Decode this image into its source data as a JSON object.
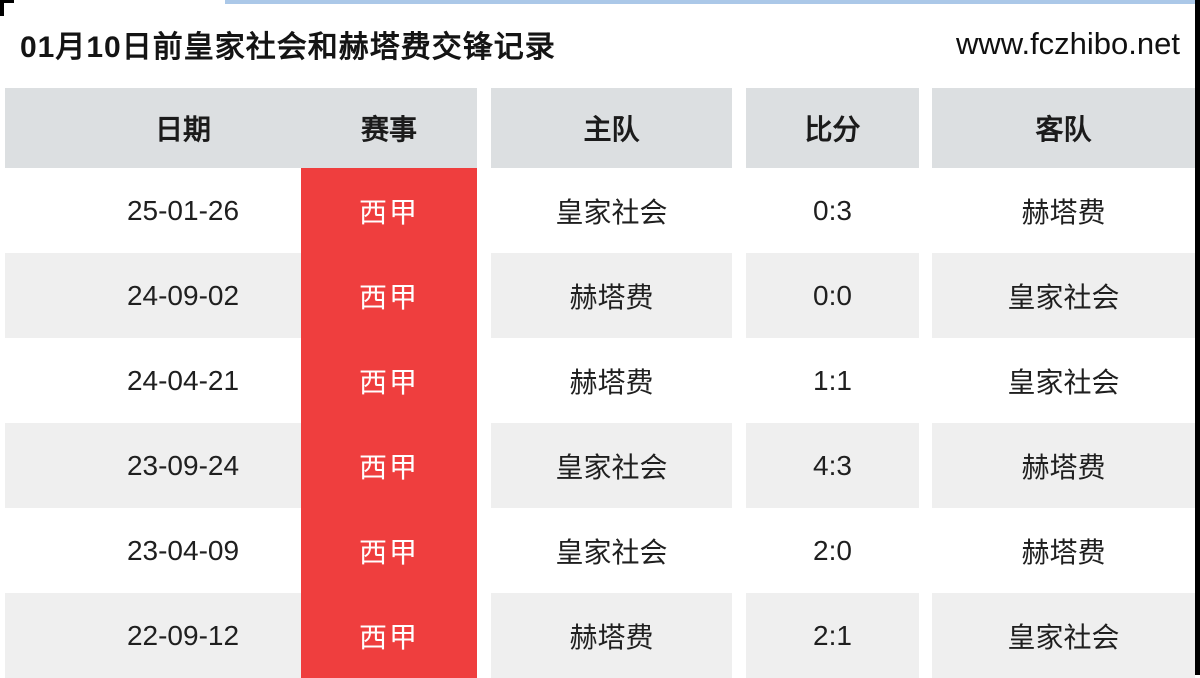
{
  "page": {
    "title": "01月10日前皇家社会和赫塔费交锋记录",
    "site": "www.fczhibo.net"
  },
  "table": {
    "columns": [
      "日期",
      "赛事",
      "主队",
      "比分",
      "客队"
    ],
    "rows": [
      {
        "date": "25-01-26",
        "league": "西甲",
        "home": "皇家社会",
        "score": "0:3",
        "away": "赫塔费"
      },
      {
        "date": "24-09-02",
        "league": "西甲",
        "home": "赫塔费",
        "score": "0:0",
        "away": "皇家社会"
      },
      {
        "date": "24-04-21",
        "league": "西甲",
        "home": "赫塔费",
        "score": "1:1",
        "away": "皇家社会"
      },
      {
        "date": "23-09-24",
        "league": "西甲",
        "home": "皇家社会",
        "score": "4:3",
        "away": "赫塔费"
      },
      {
        "date": "23-04-09",
        "league": "西甲",
        "home": "皇家社会",
        "score": "2:0",
        "away": "赫塔费"
      },
      {
        "date": "22-09-12",
        "league": "西甲",
        "home": "赫塔费",
        "score": "2:1",
        "away": "皇家社会"
      }
    ]
  },
  "colors": {
    "league_badge": "#ef3e3e",
    "header_bg": "#dcdfe1",
    "row_alt_bg": "#efefef",
    "top_line": "#abc8e8"
  }
}
